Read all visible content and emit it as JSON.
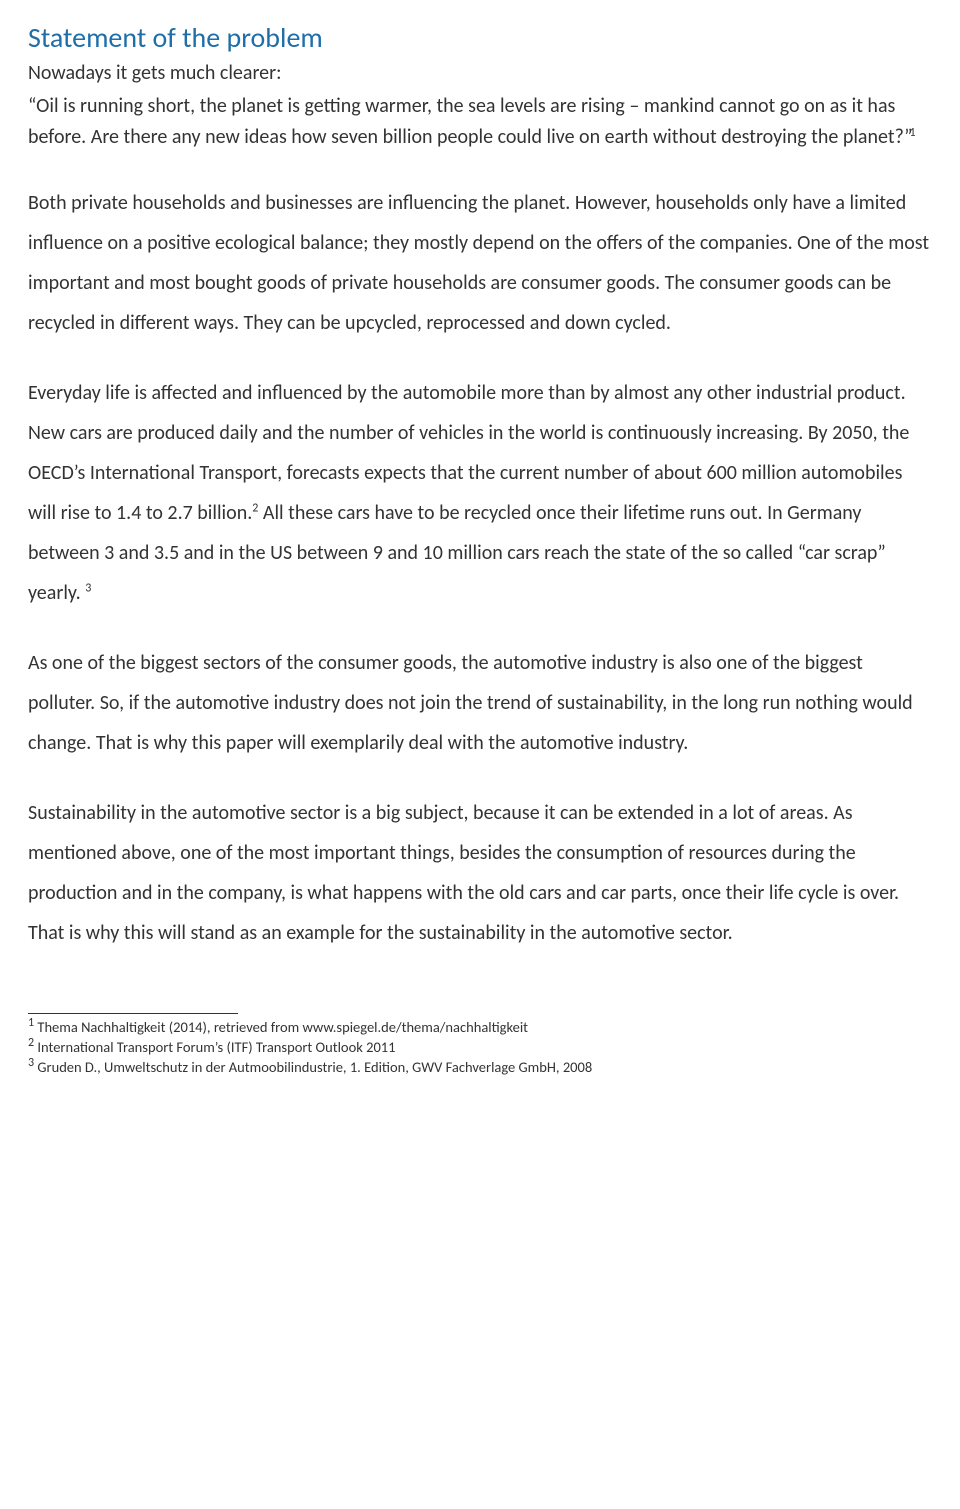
{
  "title": "Statement of the problem",
  "intro": "Nowadays it gets much clearer:",
  "quote_part1": "“Oil is running short, the planet is getting warmer, the sea levels are rising – mankind cannot go on as it has before. Are there any new ideas how seven billion people could live on earth without destroying the planet?”",
  "para1": "Both private households and businesses are influencing the planet. However, households only have a limited influence on a positive ecological balance; they mostly depend on the offers of the companies. One of the most important and most bought goods of private households are consumer goods. The consumer goods can be recycled in different ways. They can be upcycled, reprocessed and down cycled.",
  "para2a": "Everyday life is affected and influenced by the automobile more than by almost any other industrial product. New cars are produced daily and the number of vehicles in the world is continuously increasing. By 2050, the OECD’s International Transport, forecasts expects that the current number of about 600 million automobiles will rise to 1.4 to 2.7 billion.",
  "para2b": " All these cars have to be recycled once their lifetime runs out. In Germany between 3 and 3.5 and in the US between 9 and 10 million cars reach the state of the so called “car scrap” yearly. ",
  "para3": "As one of the biggest sectors of the consumer goods, the automotive industry is also one of the biggest polluter. So, if the automotive industry does not join the trend of sustainability, in the long run nothing would change. That is why this paper will exemplarily deal with the automotive industry.",
  "para4": "Sustainability in the automotive sector is a big subject, because it can be extended in a lot of areas. As mentioned above, one of the most important things, besides the consumption of resources during the production and in the company, is what happens with the old cars and car parts, once their life cycle is over. That is why this will stand as an example for the sustainability in the automotive sector.",
  "foot1_num": "1",
  "foot1_text": " Thema Nachhaltigkeit (2014), retrieved from www.spiegel.de/thema/nachhaltigkeit",
  "foot2_num": "2",
  "foot2_text": " International Transport Forum’s (ITF) Transport Outlook 2011",
  "foot3_num": "3",
  "foot3_text": " Gruden D., Umweltschutz in der Autmoobilindustrie, 1. Edition, GWV Fachverlage GmbH, 2008",
  "sup1": "1",
  "sup2": "2",
  "sup3": "3"
}
